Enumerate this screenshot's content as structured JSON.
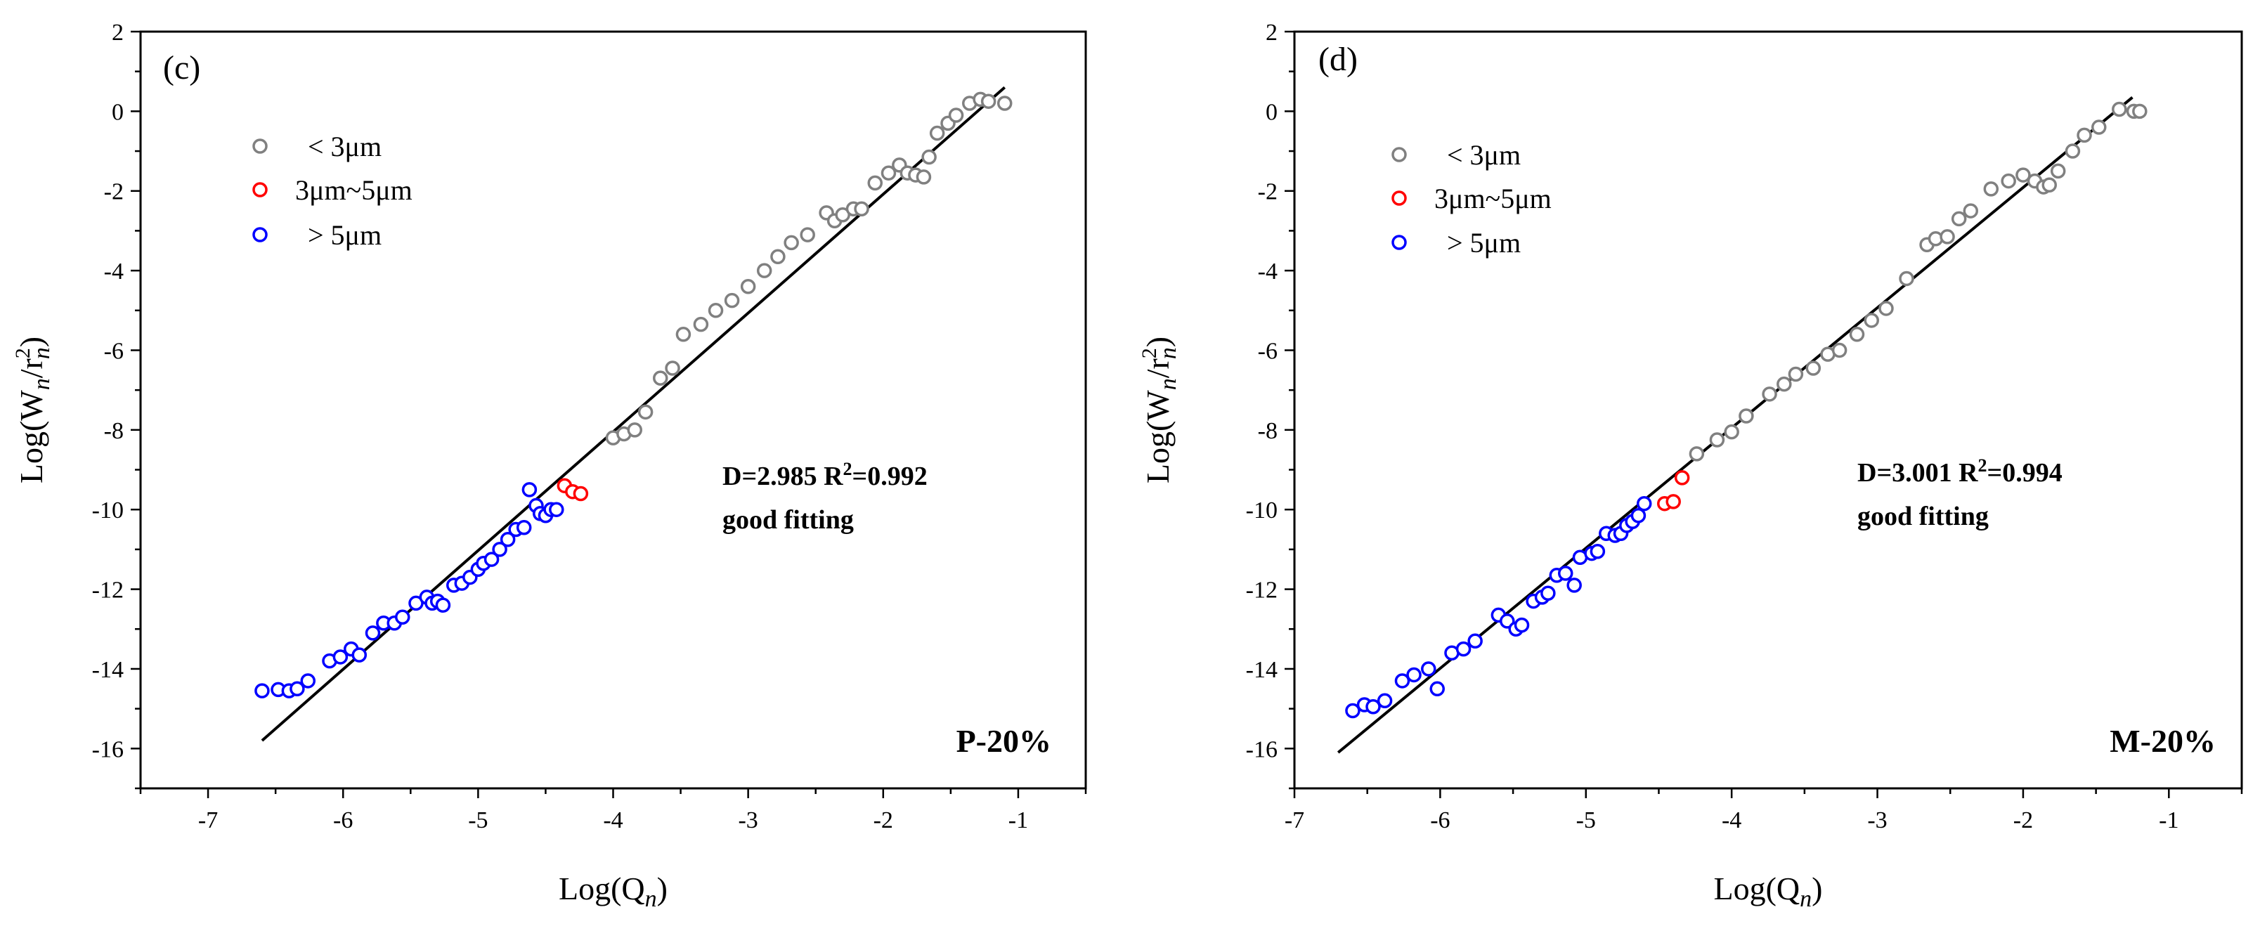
{
  "colors": {
    "lt3": "#808080",
    "mid": "#ff0000",
    "gt5": "#0000ff",
    "fit": "#000000"
  },
  "chart_data": [
    {
      "type": "scatter",
      "panel_label": "(c)",
      "sample": "P-20%",
      "xlabel_main": "Log(Q",
      "xlabel_sub": "n",
      "ylabel": "Log(Wn/rn2)",
      "xlim": [
        -7.5,
        -0.5
      ],
      "ylim": [
        -17,
        2
      ],
      "xticks": [
        -7,
        -6,
        -5,
        -4,
        -3,
        -2,
        -1
      ],
      "yticks": [
        2,
        0,
        -2,
        -4,
        -6,
        -8,
        -10,
        -12,
        -14,
        -16
      ],
      "legend": {
        "lt3": "< 3μm",
        "mid": "3μm~5μm",
        "gt5": "> 5μm"
      },
      "annotation": {
        "line1": "D=2.985   R",
        "sup": "2",
        "line1b": "=0.992",
        "line2": "good fitting"
      },
      "fit": {
        "x": [
          -6.6,
          -1.1
        ],
        "y": [
          -15.8,
          0.6
        ]
      },
      "series": [
        {
          "key": "gt5",
          "name": "> 5μm",
          "x": [
            -6.6,
            -6.48,
            -6.4,
            -6.34,
            -6.26,
            -6.1,
            -6.02,
            -5.94,
            -5.88,
            -5.78,
            -5.7,
            -5.62,
            -5.56,
            -5.46,
            -5.38,
            -5.34,
            -5.3,
            -5.26,
            -5.18,
            -5.12,
            -5.06,
            -5.0,
            -4.96,
            -4.9,
            -4.84,
            -4.78,
            -4.72,
            -4.66,
            -4.62,
            -4.57,
            -4.54,
            -4.5,
            -4.46,
            -4.42
          ],
          "y": [
            -14.55,
            -14.52,
            -14.55,
            -14.5,
            -14.3,
            -13.8,
            -13.7,
            -13.5,
            -13.65,
            -13.1,
            -12.85,
            -12.85,
            -12.7,
            -12.35,
            -12.2,
            -12.35,
            -12.3,
            -12.4,
            -11.9,
            -11.85,
            -11.7,
            -11.5,
            -11.35,
            -11.25,
            -11.0,
            -10.75,
            -10.5,
            -10.45,
            -9.5,
            -9.9,
            -10.1,
            -10.15,
            -10.0,
            -10.0
          ]
        },
        {
          "key": "mid",
          "name": "3μm~5μm",
          "x": [
            -4.36,
            -4.3,
            -4.24
          ],
          "y": [
            -9.4,
            -9.55,
            -9.6
          ]
        },
        {
          "key": "lt3",
          "name": "< 3μm",
          "x": [
            -4.0,
            -3.92,
            -3.84,
            -3.76,
            -3.65,
            -3.56,
            -3.48,
            -3.35,
            -3.24,
            -3.12,
            -3.0,
            -2.88,
            -2.78,
            -2.68,
            -2.56,
            -2.42,
            -2.36,
            -2.3,
            -2.22,
            -2.16,
            -2.06,
            -1.96,
            -1.88,
            -1.82,
            -1.76,
            -1.7,
            -1.66,
            -1.6,
            -1.52,
            -1.46,
            -1.36,
            -1.28,
            -1.22,
            -1.1
          ],
          "y": [
            -8.2,
            -8.1,
            -8.0,
            -7.55,
            -6.7,
            -6.45,
            -5.6,
            -5.35,
            -5.0,
            -4.75,
            -4.4,
            -4.0,
            -3.65,
            -3.3,
            -3.1,
            -2.55,
            -2.75,
            -2.6,
            -2.45,
            -2.45,
            -1.8,
            -1.55,
            -1.35,
            -1.55,
            -1.6,
            -1.65,
            -1.15,
            -0.55,
            -0.3,
            -0.1,
            0.2,
            0.3,
            0.25,
            0.2
          ]
        }
      ]
    },
    {
      "type": "scatter",
      "panel_label": "(d)",
      "sample": "M-20%",
      "xlabel_main": "Log(Q",
      "xlabel_sub": "n",
      "ylabel": "Log(Wn/rn2)",
      "xlim": [
        -7,
        -0.5
      ],
      "ylim": [
        -17,
        2
      ],
      "xticks": [
        -7,
        -6,
        -5,
        -4,
        -3,
        -2,
        -1
      ],
      "yticks": [
        2,
        0,
        -2,
        -4,
        -6,
        -8,
        -10,
        -12,
        -14,
        -16
      ],
      "legend": {
        "lt3": "< 3μm",
        "mid": "3μm~5μm",
        "gt5": "> 5μm"
      },
      "annotation": {
        "line1": "D=3.001   R",
        "sup": "2",
        "line1b": "=0.994",
        "line2": "good fitting"
      },
      "fit": {
        "x": [
          -6.7,
          -1.25
        ],
        "y": [
          -16.1,
          0.35
        ]
      },
      "series": [
        {
          "key": "gt5",
          "name": "> 5μm",
          "x": [
            -6.6,
            -6.52,
            -6.46,
            -6.38,
            -6.26,
            -6.18,
            -6.08,
            -6.02,
            -5.92,
            -5.84,
            -5.76,
            -5.6,
            -5.54,
            -5.48,
            -5.44,
            -5.36,
            -5.3,
            -5.26,
            -5.2,
            -5.14,
            -5.08,
            -5.04,
            -4.96,
            -4.92,
            -4.86,
            -4.8,
            -4.76,
            -4.72,
            -4.68,
            -4.64,
            -4.6
          ],
          "y": [
            -15.05,
            -14.9,
            -14.95,
            -14.8,
            -14.3,
            -14.15,
            -14.0,
            -14.5,
            -13.6,
            -13.5,
            -13.3,
            -12.65,
            -12.8,
            -13.0,
            -12.9,
            -12.3,
            -12.2,
            -12.1,
            -11.65,
            -11.6,
            -11.9,
            -11.2,
            -11.1,
            -11.05,
            -10.6,
            -10.65,
            -10.6,
            -10.4,
            -10.3,
            -10.15,
            -9.85
          ]
        },
        {
          "key": "mid",
          "name": "3μm~5μm",
          "x": [
            -4.46,
            -4.4,
            -4.34
          ],
          "y": [
            -9.85,
            -9.8,
            -9.2
          ]
        },
        {
          "key": "lt3",
          "name": "< 3μm",
          "x": [
            -4.24,
            -4.1,
            -4.0,
            -3.9,
            -3.74,
            -3.64,
            -3.56,
            -3.44,
            -3.34,
            -3.26,
            -3.14,
            -3.04,
            -2.94,
            -2.8,
            -2.66,
            -2.6,
            -2.52,
            -2.44,
            -2.36,
            -2.22,
            -2.1,
            -2.0,
            -1.92,
            -1.86,
            -1.82,
            -1.76,
            -1.66,
            -1.58,
            -1.48,
            -1.34,
            -1.24,
            -1.2
          ],
          "y": [
            -8.6,
            -8.25,
            -8.05,
            -7.65,
            -7.1,
            -6.85,
            -6.6,
            -6.45,
            -6.1,
            -6.0,
            -5.6,
            -5.25,
            -4.95,
            -4.2,
            -3.35,
            -3.2,
            -3.15,
            -2.7,
            -2.5,
            -1.95,
            -1.75,
            -1.6,
            -1.75,
            -1.9,
            -1.85,
            -1.5,
            -1.0,
            -0.6,
            -0.4,
            0.05,
            0.0,
            0.0
          ]
        }
      ]
    }
  ]
}
